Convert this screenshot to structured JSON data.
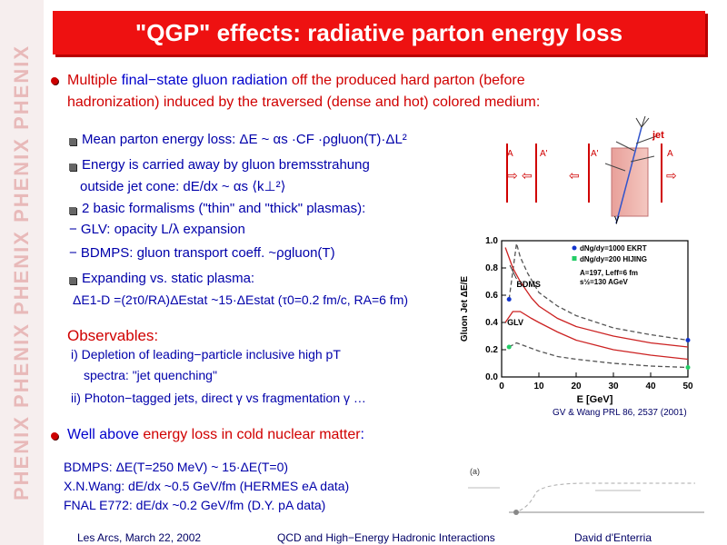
{
  "slide": {
    "title": "\"QGP\" effects: radiative parton energy loss",
    "watermark": "PHENIX PHENIX PHENIX PHENIX PHENIX",
    "bullet1": {
      "part1": "Multiple ",
      "part2": "final−state gluon radiation",
      "part3": " off the produced hard parton (before",
      "line2": "hadronization) induced by the traversed (dense and hot) colored medium:"
    },
    "sub1": "Mean parton energy loss:  ΔE ~ αs ·CF ·ρgluon(T)·ΔL²",
    "sub2_line1": "Energy is carried away by gluon bremsstrahung",
    "sub2_line2": "outside jet cone: dE/dx ~ αs ⟨k⊥²⟩",
    "sub3_line1": "2 basic formalisms (\"thin\" and \"thick\" plasmas):",
    "sub3_line2": "− GLV: opacity L/λ expansion",
    "sub3_line3": "− BDMPS: gluon transport coeff. ~ρgluon(T)",
    "sub4_line1": "Expanding vs. static plasma:",
    "sub4_line2": "ΔE1-D =(2τ0/RA)ΔEstat ~15·ΔEstat  (τ0=0.2 fm/c, RA=6 fm)",
    "observables_title": "Observables:",
    "obs1_line1": "i) Depletion of leading−particle inclusive high pT",
    "obs1_line2": "spectra: \"jet quenching\"",
    "obs2": "ii) Photon−tagged jets, direct γ vs fragmentation γ …",
    "bullet2": {
      "part1": "Well above ",
      "part2": "energy loss in cold nuclear matter",
      "part3": ":"
    },
    "cold1": "BDMPS: ΔE(T=250 MeV) ~ 15·ΔE(T=0)",
    "cold2": "X.N.Wang: dE/dx ~0.5 GeV/fm (HERMES eA data)",
    "cold3": "FNAL E772: dE/dx ~0.2 GeV/fm (D.Y. pA data)",
    "footer_left": "Les Arcs, March 22, 2002",
    "footer_center": "QCD and High−Energy Hadronic Interactions",
    "footer_right": "David d'Enterria"
  },
  "diagram": {
    "jet_label": "jet",
    "gamma_label": "γ",
    "labels": [
      "A",
      "A'",
      "A'",
      "A"
    ]
  },
  "chart_data": {
    "type": "line",
    "xlabel": "E [GeV]",
    "ylabel": "Gluon Jet ΔE/E",
    "xlim": [
      0,
      50
    ],
    "ylim": [
      0.0,
      1.0
    ],
    "xticks": [
      0,
      10,
      20,
      30,
      40,
      50
    ],
    "yticks": [
      0.0,
      0.2,
      0.4,
      0.6,
      0.8,
      1.0
    ],
    "series": [
      {
        "name": "dNg/dy=1000 EKRT",
        "x": [
          2,
          4,
          5,
          7,
          10,
          15,
          20,
          30,
          40,
          50
        ],
        "y": [
          0.57,
          0.98,
          0.88,
          0.76,
          0.62,
          0.52,
          0.45,
          0.36,
          0.31,
          0.27
        ],
        "style": "dashed-blue"
      },
      {
        "name": "dNg/dy=200 HIJING",
        "x": [
          2,
          4,
          5,
          7,
          10,
          15,
          20,
          30,
          40,
          50
        ],
        "y": [
          0.22,
          0.25,
          0.24,
          0.22,
          0.19,
          0.15,
          0.13,
          0.1,
          0.08,
          0.07
        ],
        "style": "dashed-green"
      },
      {
        "name": "BDMS",
        "x": [
          1,
          3,
          5,
          8,
          10,
          15,
          20,
          30,
          40,
          50
        ],
        "y": [
          0.95,
          0.8,
          0.7,
          0.58,
          0.52,
          0.43,
          0.37,
          0.3,
          0.25,
          0.22
        ],
        "style": "solid-red"
      },
      {
        "name": "GLV",
        "x": [
          1,
          3,
          5,
          8,
          10,
          15,
          20,
          30,
          40,
          50
        ],
        "y": [
          0.4,
          0.48,
          0.48,
          0.43,
          0.4,
          0.33,
          0.27,
          0.2,
          0.16,
          0.13
        ],
        "style": "solid-red"
      }
    ],
    "legend": [
      "dNg/dy=1000 EKRT",
      "dNg/dy=200 HIJING"
    ],
    "annotations": [
      "BDMS",
      "GLV",
      "A=197, Leff=6 fm",
      "s½=130 AGeV"
    ],
    "citation": "GV & Wang PRL 86, 2537 (2001)"
  },
  "bottom_figure": {
    "label_a": "(a)"
  },
  "colors": {
    "title_bg": "#ee1111",
    "accent_red": "#d00000",
    "accent_blue": "#0000cc"
  }
}
